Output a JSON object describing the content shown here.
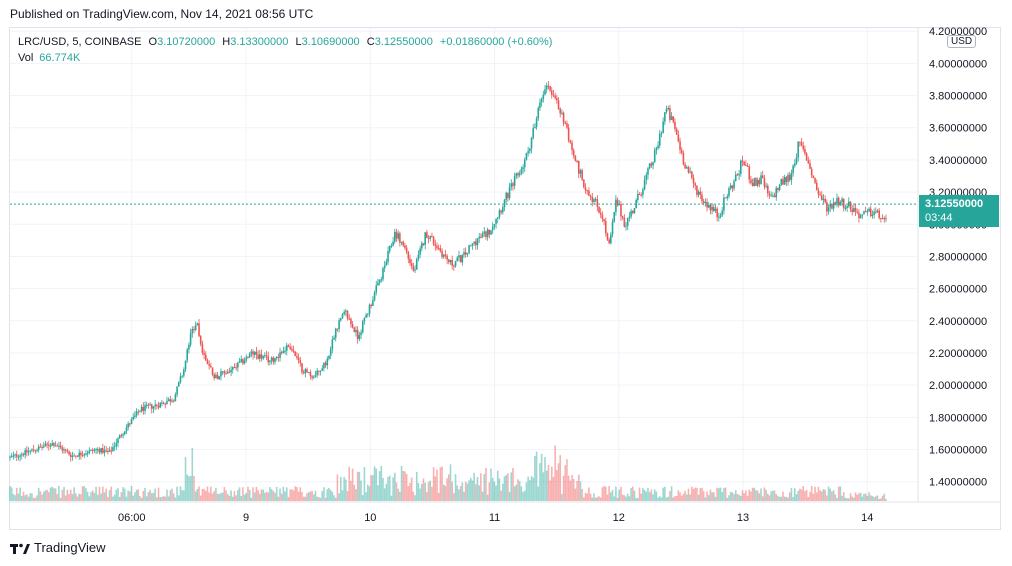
{
  "header": {
    "published": "Published on TradingView.com, Nov 14, 2021 08:56 UTC"
  },
  "legend": {
    "symbol": "LRC/USD, 5, COINBASE",
    "o_label": "O",
    "o_value": "3.10720000",
    "h_label": "H",
    "h_value": "3.13300000",
    "l_label": "L",
    "l_value": "3.10690000",
    "c_label": "C",
    "c_value": "3.12550000",
    "change": "+0.01860000 (+0.60%)",
    "vol_label": "Vol",
    "vol_value": "66.774K"
  },
  "currency": "USD",
  "last_price": {
    "price": "3.12550000",
    "countdown": "03:44"
  },
  "footer": {
    "brand": "TradingView"
  },
  "colors": {
    "up": "#26a69a",
    "down": "#ef5350",
    "grid": "#f0f3fa",
    "axis_text": "#131722"
  },
  "chart_data": {
    "type": "candlestick",
    "y_ticks": [
      "4.20000000",
      "4.00000000",
      "3.80000000",
      "3.60000000",
      "3.40000000",
      "3.20000000",
      "3.00000000",
      "2.80000000",
      "2.60000000",
      "2.40000000",
      "2.20000000",
      "2.00000000",
      "1.80000000",
      "1.60000000",
      "1.40000000"
    ],
    "y_range": [
      1.28,
      4.22
    ],
    "x_ticks": [
      {
        "label": "06:00",
        "t": 0.08
      },
      {
        "label": "9",
        "t": 1.0
      },
      {
        "label": "10",
        "t": 2.0
      },
      {
        "label": "11",
        "t": 3.0
      },
      {
        "label": "12",
        "t": 4.0
      },
      {
        "label": "13",
        "t": 5.0
      },
      {
        "label": "14",
        "t": 6.0
      }
    ],
    "x_range": [
      -0.9,
      6.4
    ],
    "last_close": 3.1255,
    "price_path": [
      [
        -0.9,
        1.55
      ],
      [
        -0.7,
        1.6
      ],
      [
        -0.55,
        1.64
      ],
      [
        -0.4,
        1.56
      ],
      [
        -0.2,
        1.6
      ],
      [
        -0.1,
        1.58
      ],
      [
        0.0,
        1.7
      ],
      [
        0.15,
        1.85
      ],
      [
        0.3,
        1.88
      ],
      [
        0.42,
        1.92
      ],
      [
        0.5,
        2.1
      ],
      [
        0.55,
        2.3
      ],
      [
        0.6,
        2.4
      ],
      [
        0.65,
        2.2
      ],
      [
        0.75,
        2.05
      ],
      [
        0.9,
        2.1
      ],
      [
        1.05,
        2.2
      ],
      [
        1.2,
        2.15
      ],
      [
        1.35,
        2.25
      ],
      [
        1.45,
        2.1
      ],
      [
        1.55,
        2.05
      ],
      [
        1.65,
        2.15
      ],
      [
        1.72,
        2.35
      ],
      [
        1.8,
        2.45
      ],
      [
        1.9,
        2.3
      ],
      [
        2.0,
        2.5
      ],
      [
        2.1,
        2.7
      ],
      [
        2.2,
        2.95
      ],
      [
        2.28,
        2.85
      ],
      [
        2.35,
        2.7
      ],
      [
        2.45,
        2.95
      ],
      [
        2.55,
        2.85
      ],
      [
        2.65,
        2.75
      ],
      [
        2.75,
        2.8
      ],
      [
        2.85,
        2.9
      ],
      [
        2.95,
        2.95
      ],
      [
        3.05,
        3.1
      ],
      [
        3.15,
        3.25
      ],
      [
        3.25,
        3.4
      ],
      [
        3.35,
        3.7
      ],
      [
        3.42,
        3.9
      ],
      [
        3.5,
        3.75
      ],
      [
        3.58,
        3.6
      ],
      [
        3.65,
        3.4
      ],
      [
        3.72,
        3.25
      ],
      [
        3.8,
        3.15
      ],
      [
        3.87,
        3.05
      ],
      [
        3.92,
        2.85
      ],
      [
        3.98,
        3.15
      ],
      [
        4.05,
        3.0
      ],
      [
        4.12,
        3.1
      ],
      [
        4.2,
        3.25
      ],
      [
        4.3,
        3.45
      ],
      [
        4.38,
        3.72
      ],
      [
        4.45,
        3.6
      ],
      [
        4.52,
        3.4
      ],
      [
        4.6,
        3.25
      ],
      [
        4.68,
        3.15
      ],
      [
        4.75,
        3.1
      ],
      [
        4.8,
        3.05
      ],
      [
        4.88,
        3.2
      ],
      [
        4.95,
        3.3
      ],
      [
        5.0,
        3.4
      ],
      [
        5.08,
        3.25
      ],
      [
        5.15,
        3.28
      ],
      [
        5.22,
        3.15
      ],
      [
        5.3,
        3.25
      ],
      [
        5.38,
        3.3
      ],
      [
        5.45,
        3.5
      ],
      [
        5.52,
        3.4
      ],
      [
        5.6,
        3.2
      ],
      [
        5.68,
        3.1
      ],
      [
        5.75,
        3.15
      ],
      [
        5.85,
        3.12
      ],
      [
        5.95,
        3.05
      ],
      [
        6.05,
        3.08
      ],
      [
        6.15,
        3.02
      ]
    ]
  }
}
